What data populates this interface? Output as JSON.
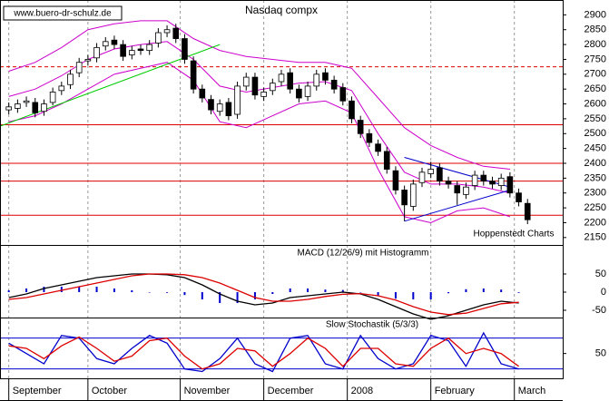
{
  "chart_data": [
    {
      "type": "candlestick",
      "title": "Nasdaq compx",
      "source": "www.buero-dr-schulz.de",
      "credit": "Hoppenstedt Charts",
      "x": [
        0,
        1,
        2,
        3,
        4,
        5,
        6,
        7,
        8,
        9,
        10,
        11,
        12,
        13,
        14,
        15,
        16,
        17,
        18,
        19,
        20,
        21,
        22,
        23,
        24,
        25,
        26,
        27,
        28,
        29,
        30,
        31,
        32,
        33,
        34,
        35,
        36,
        37,
        38,
        39,
        40,
        41,
        42,
        43,
        44,
        45,
        46,
        47,
        48,
        49,
        50,
        51,
        52,
        53,
        54,
        55,
        56,
        57,
        58,
        59
      ],
      "open": [
        2580,
        2585,
        2605,
        2605,
        2575,
        2605,
        2645,
        2665,
        2705,
        2745,
        2755,
        2795,
        2815,
        2800,
        2765,
        2785,
        2780,
        2805,
        2840,
        2855,
        2820,
        2745,
        2650,
        2615,
        2575,
        2605,
        2565,
        2660,
        2690,
        2625,
        2645,
        2675,
        2705,
        2650,
        2625,
        2660,
        2705,
        2680,
        2655,
        2610,
        2545,
        2500,
        2465,
        2440,
        2375,
        2310,
        2255,
        2335,
        2365,
        2385,
        2340,
        2325,
        2295,
        2325,
        2360,
        2340,
        2325,
        2355,
        2300,
        2265
      ],
      "high": [
        2605,
        2615,
        2625,
        2620,
        2615,
        2655,
        2675,
        2715,
        2755,
        2765,
        2805,
        2825,
        2830,
        2815,
        2795,
        2800,
        2815,
        2855,
        2865,
        2870,
        2835,
        2760,
        2665,
        2630,
        2615,
        2620,
        2675,
        2705,
        2705,
        2655,
        2685,
        2715,
        2720,
        2665,
        2675,
        2715,
        2720,
        2695,
        2670,
        2625,
        2560,
        2515,
        2480,
        2455,
        2390,
        2325,
        2345,
        2385,
        2405,
        2400,
        2355,
        2340,
        2335,
        2375,
        2375,
        2355,
        2365,
        2370,
        2315,
        2280
      ],
      "low": [
        2565,
        2570,
        2590,
        2555,
        2560,
        2595,
        2630,
        2650,
        2690,
        2730,
        2740,
        2780,
        2785,
        2745,
        2750,
        2765,
        2765,
        2790,
        2825,
        2805,
        2735,
        2635,
        2605,
        2565,
        2560,
        2545,
        2550,
        2645,
        2615,
        2610,
        2630,
        2660,
        2635,
        2605,
        2610,
        2645,
        2665,
        2635,
        2595,
        2535,
        2485,
        2455,
        2425,
        2365,
        2295,
        2205,
        2240,
        2320,
        2350,
        2325,
        2315,
        2260,
        2280,
        2310,
        2325,
        2315,
        2310,
        2285,
        2255,
        2195
      ],
      "close": [
        2590,
        2600,
        2610,
        2570,
        2600,
        2640,
        2660,
        2700,
        2740,
        2750,
        2790,
        2810,
        2800,
        2760,
        2780,
        2780,
        2800,
        2840,
        2850,
        2820,
        2750,
        2650,
        2620,
        2580,
        2600,
        2560,
        2660,
        2690,
        2630,
        2640,
        2670,
        2700,
        2650,
        2620,
        2660,
        2700,
        2680,
        2650,
        2610,
        2550,
        2500,
        2470,
        2440,
        2380,
        2310,
        2260,
        2330,
        2370,
        2380,
        2340,
        2330,
        2300,
        2320,
        2360,
        2340,
        2330,
        2350,
        2300,
        2270,
        2210
      ],
      "up_color": "#ffffff",
      "down_color": "#000000",
      "bands": {
        "color": "#cc00cc",
        "x": [
          0,
          3,
          6,
          9,
          12,
          15,
          18,
          21,
          24,
          27,
          30,
          33,
          36,
          39,
          42,
          45,
          48,
          51,
          54,
          57
        ],
        "upper": [
          2710,
          2740,
          2790,
          2850,
          2870,
          2880,
          2880,
          2820,
          2780,
          2760,
          2750,
          2740,
          2740,
          2720,
          2620,
          2520,
          2460,
          2420,
          2390,
          2380
        ],
        "middle": [
          2625,
          2650,
          2695,
          2750,
          2785,
          2800,
          2810,
          2750,
          2660,
          2640,
          2655,
          2670,
          2675,
          2645,
          2500,
          2370,
          2330,
          2330,
          2320,
          2300
        ],
        "lower": [
          2540,
          2560,
          2600,
          2650,
          2700,
          2720,
          2740,
          2680,
          2540,
          2520,
          2560,
          2600,
          2610,
          2570,
          2380,
          2220,
          2200,
          2240,
          2250,
          2220
        ]
      },
      "hlines": [
        {
          "value": 2725,
          "dashed": true
        },
        {
          "value": 2530,
          "dashed": false
        },
        {
          "value": 2400,
          "dashed": false
        },
        {
          "value": 2340,
          "dashed": false
        },
        {
          "value": 2225,
          "dashed": false
        }
      ],
      "hline_color": "#dd0000",
      "trendlines": [
        {
          "color": "#00cc00",
          "x": [
            -1,
            24
          ],
          "y": [
            2525,
            2800
          ]
        },
        {
          "color": "#0000cc",
          "x": [
            45,
            57
          ],
          "y": [
            2205,
            2310
          ]
        },
        {
          "color": "#0000cc",
          "x": [
            45,
            57
          ],
          "y": [
            2420,
            2320
          ]
        }
      ],
      "xlim": [
        -1,
        63
      ],
      "ylim": [
        2125,
        2950
      ],
      "yticks": [
        2150,
        2200,
        2250,
        2300,
        2350,
        2400,
        2450,
        2500,
        2550,
        2600,
        2650,
        2700,
        2750,
        2800,
        2850,
        2900
      ]
    },
    {
      "type": "line",
      "title": "MACD (12/26/9) mit Histogramm",
      "x": [
        0,
        2,
        4,
        6,
        8,
        10,
        12,
        14,
        16,
        18,
        20,
        22,
        24,
        26,
        28,
        30,
        32,
        34,
        36,
        38,
        40,
        42,
        44,
        46,
        48,
        50,
        52,
        54,
        56,
        58
      ],
      "series": [
        {
          "type": "bar",
          "color": "#0000cc",
          "values": [
            5,
            10,
            15,
            15,
            15,
            15,
            10,
            5,
            0,
            -2,
            -8,
            -20,
            -30,
            -30,
            -20,
            -5,
            10,
            10,
            7,
            6,
            -1,
            -10,
            -18,
            -20,
            -20,
            -3,
            8,
            10,
            7,
            -2
          ]
        },
        {
          "type": "line",
          "color": "#000000",
          "values": [
            -15,
            -5,
            10,
            20,
            30,
            40,
            45,
            50,
            50,
            48,
            40,
            20,
            -5,
            -25,
            -35,
            -30,
            -15,
            -10,
            -5,
            0,
            -5,
            -20,
            -40,
            -60,
            -75,
            -65,
            -50,
            -35,
            -25,
            -30
          ]
        },
        {
          "type": "line",
          "color": "#dd0000",
          "values": [
            -20,
            -15,
            -5,
            5,
            15,
            25,
            35,
            45,
            50,
            50,
            48,
            40,
            25,
            5,
            -15,
            -25,
            -25,
            -20,
            -12,
            -6,
            -4,
            -10,
            -22,
            -40,
            -55,
            -62,
            -58,
            -45,
            -32,
            -28
          ]
        }
      ],
      "xlim": [
        -1,
        63
      ],
      "ylim": [
        -70,
        130
      ],
      "yticks": [
        -50,
        0,
        50
      ]
    },
    {
      "type": "line",
      "title": "Slow Stochastik (5/3/3)",
      "x": [
        0,
        2,
        4,
        6,
        8,
        10,
        12,
        14,
        16,
        18,
        20,
        22,
        24,
        26,
        28,
        30,
        32,
        34,
        36,
        38,
        40,
        42,
        44,
        46,
        48,
        50,
        52,
        54,
        56,
        58
      ],
      "series": [
        {
          "type": "line",
          "color": "#0000cc",
          "values": [
            70,
            50,
            30,
            85,
            80,
            40,
            30,
            60,
            85,
            70,
            20,
            15,
            40,
            80,
            30,
            15,
            80,
            85,
            30,
            20,
            85,
            40,
            20,
            30,
            85,
            75,
            25,
            90,
            30,
            20
          ]
        },
        {
          "type": "line",
          "color": "#dd0000",
          "values": [
            65,
            60,
            40,
            65,
            82,
            60,
            35,
            45,
            75,
            80,
            45,
            20,
            30,
            60,
            55,
            25,
            50,
            80,
            60,
            25,
            60,
            60,
            30,
            25,
            60,
            80,
            50,
            60,
            50,
            25
          ]
        }
      ],
      "levels": [
        20,
        80
      ],
      "level_color": "#0000cc",
      "xlim": [
        -1,
        63
      ],
      "ylim": [
        0,
        120
      ],
      "yticks": [
        50
      ],
      "xticks": [
        {
          "value": 0,
          "label": "September"
        },
        {
          "value": 9,
          "label": "October"
        },
        {
          "value": 19.5,
          "label": "November"
        },
        {
          "value": 29,
          "label": "December"
        },
        {
          "value": 38.5,
          "label": "2008"
        },
        {
          "value": 48,
          "label": "February"
        },
        {
          "value": 57.5,
          "label": "March"
        }
      ]
    }
  ]
}
